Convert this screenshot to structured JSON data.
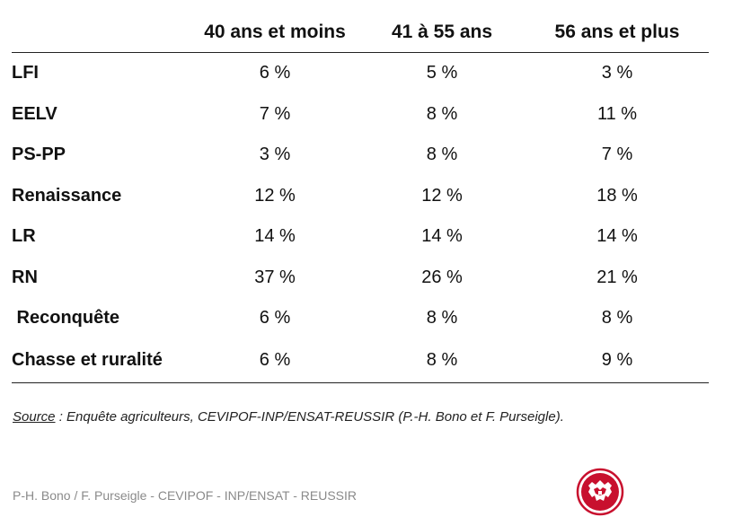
{
  "table": {
    "headers": [
      "",
      "40 ans et moins",
      "41 à 55 ans",
      "56 ans et plus"
    ],
    "rows": [
      {
        "label": "LFI",
        "values": [
          "6 %",
          "5 %",
          "3 %"
        ]
      },
      {
        "label": "EELV",
        "values": [
          "7 %",
          "8 %",
          "11 %"
        ]
      },
      {
        "label": "PS-PP",
        "values": [
          "3 %",
          "8 %",
          "7 %"
        ]
      },
      {
        "label": "Renaissance",
        "values": [
          "12 %",
          "12 %",
          "18 %"
        ]
      },
      {
        "label": "LR",
        "values": [
          "14 %",
          "14 %",
          "14 %"
        ]
      },
      {
        "label": "RN",
        "values": [
          "37 %",
          "26 %",
          "21 %"
        ]
      },
      {
        "label": " Reconquête",
        "values": [
          "6 %",
          "8 %",
          "8 %"
        ]
      },
      {
        "label": "Chasse et ruralité",
        "values": [
          "6 %",
          "8 %",
          "9 %"
        ]
      }
    ]
  },
  "source": {
    "label": "Source",
    "text": " : Enquête agriculteurs, CEVIPOF-INP/ENSAT-REUSSIR (P.-H. Bono et F. Purseigle)."
  },
  "footer": {
    "credit": "P-H. Bono / F. Purseigle - CEVIPOF - INP/ENSAT - REUSSIR"
  },
  "logo": {
    "icon": "heraldic-lion-seal-icon",
    "color": "#c8102e"
  }
}
